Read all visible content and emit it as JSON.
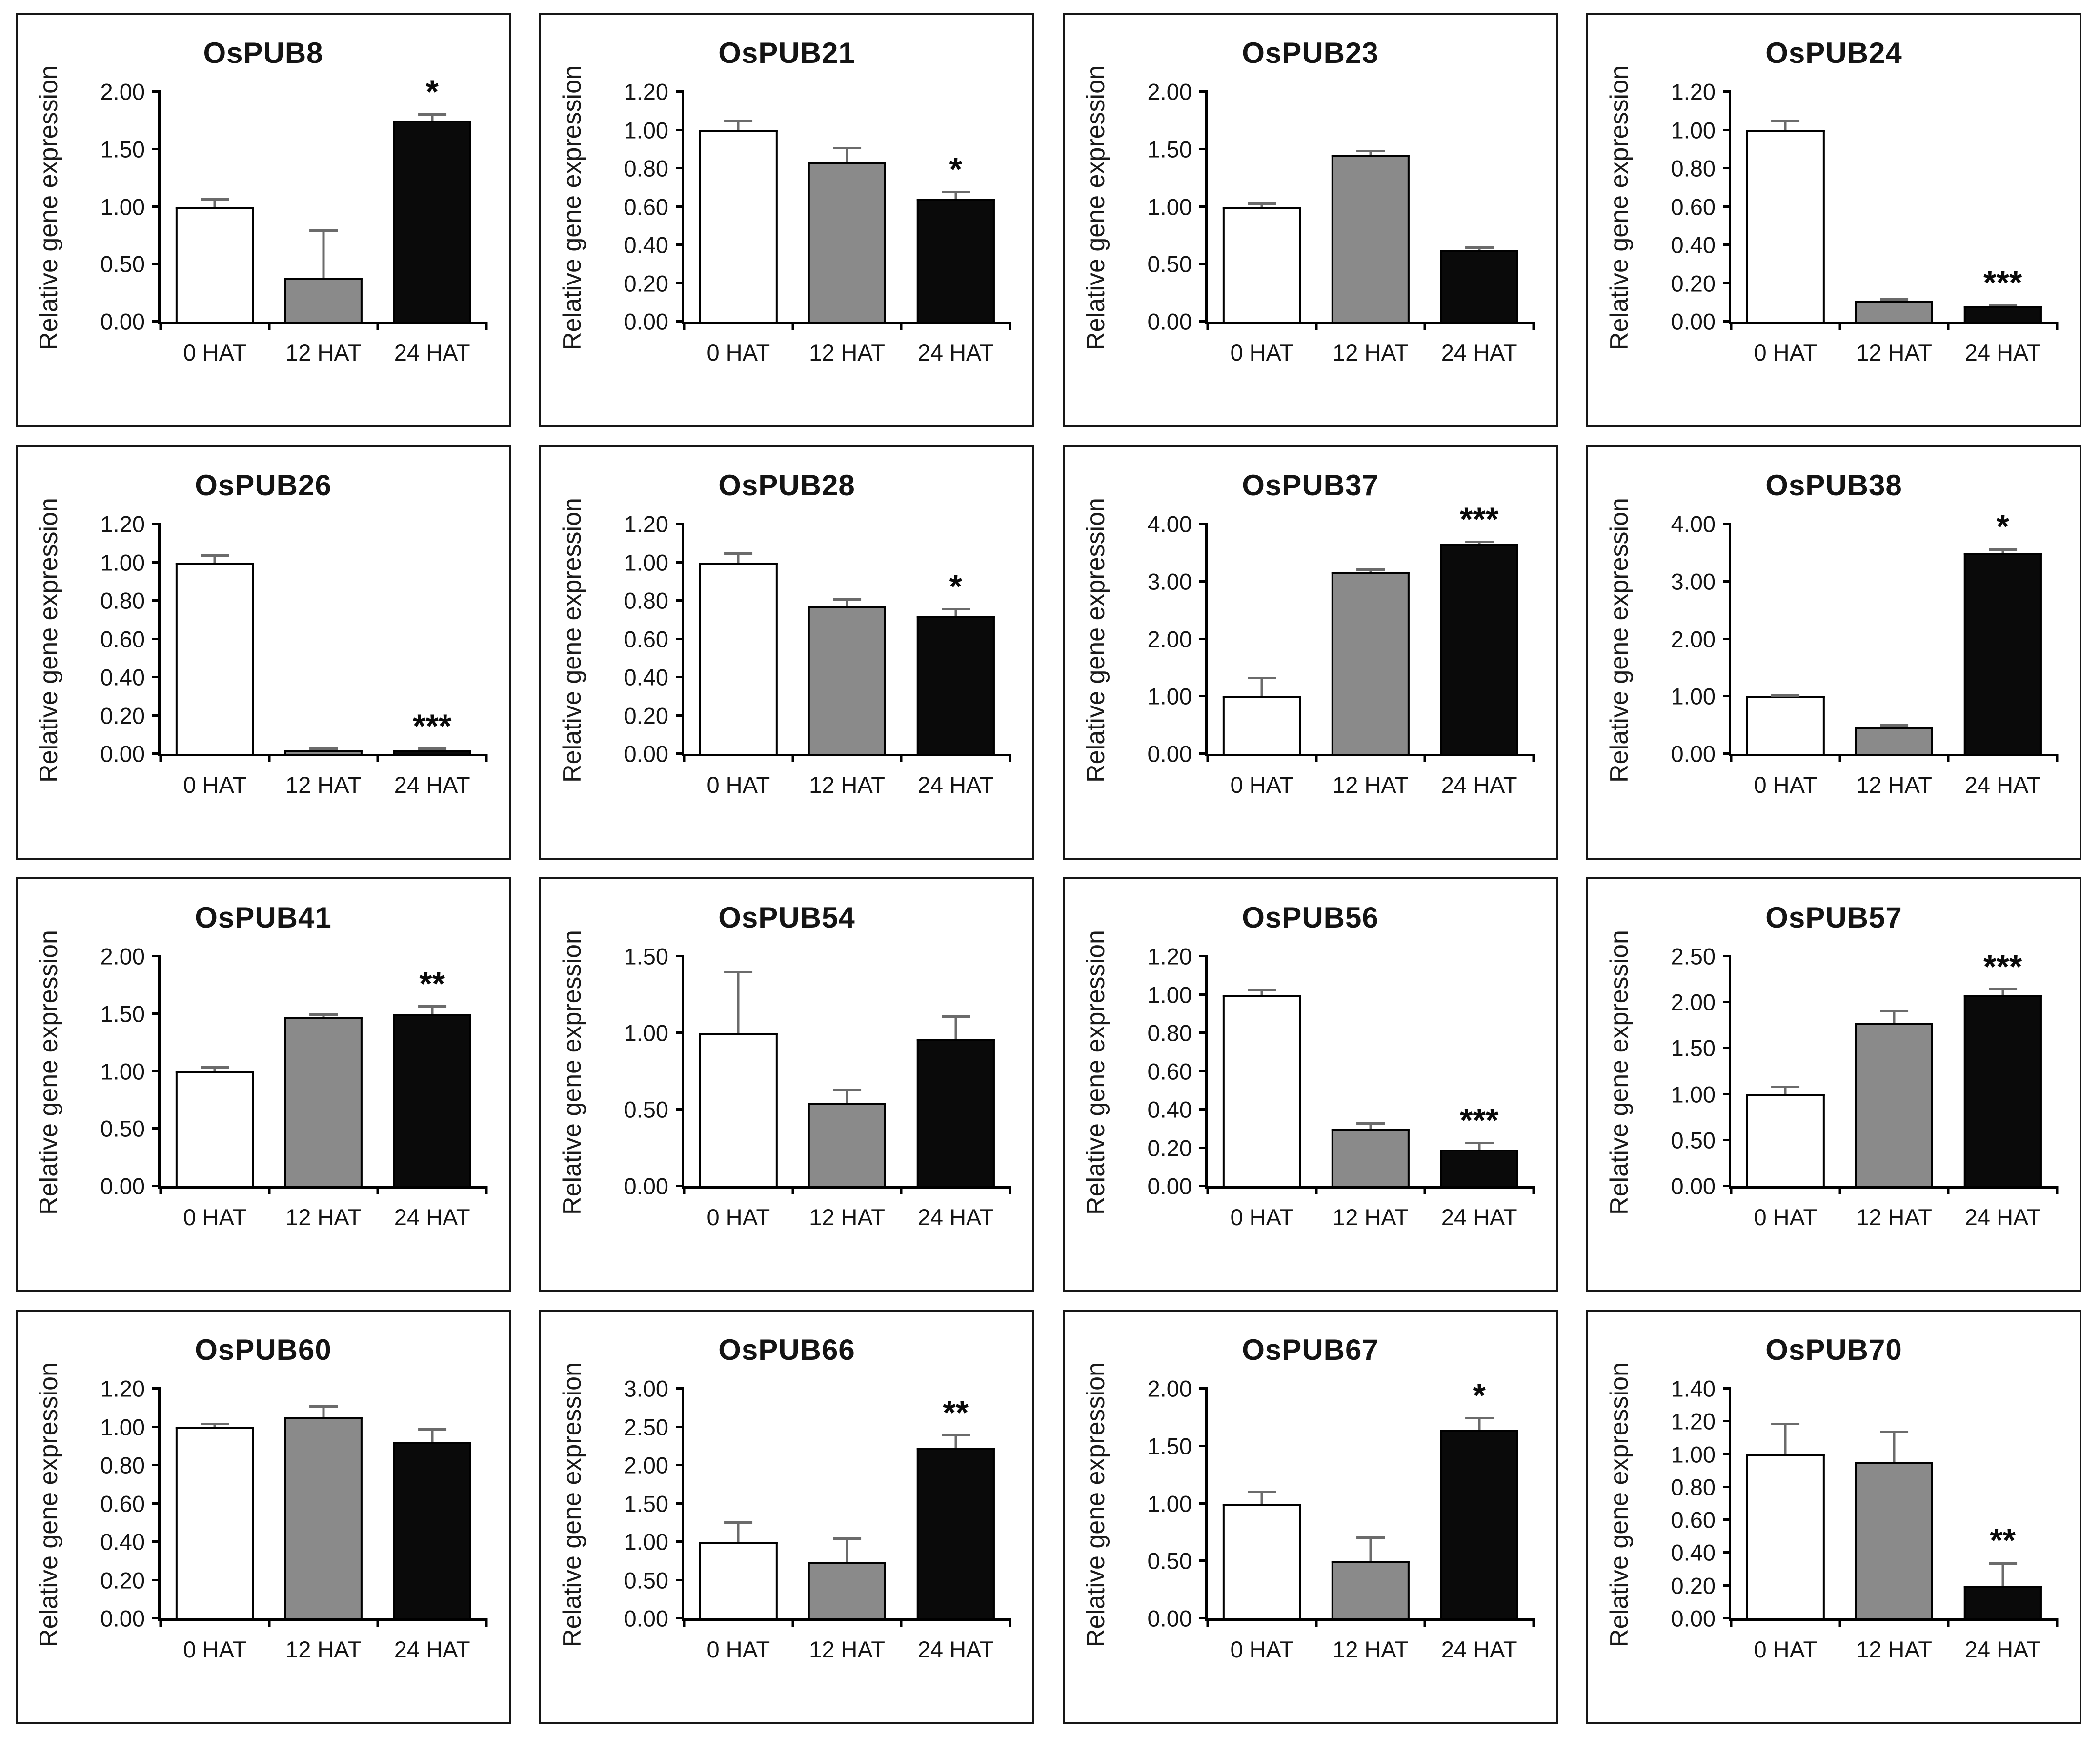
{
  "figure": {
    "y_axis_label": "Relative gene expression",
    "x_categories": [
      "0 HAT",
      "12 HAT",
      "24 HAT"
    ],
    "bar_fills": [
      "#ffffff",
      "#8a8a8a",
      "#0a0a0a"
    ],
    "bar_border_color": "#000000",
    "error_bar_color": "#6b6b6b",
    "panel_border_color": "#161616"
  },
  "chart_data": [
    {
      "type": "bar",
      "title": "OsPUB8",
      "categories": [
        "0 HAT",
        "12 HAT",
        "24 HAT"
      ],
      "values": [
        1.0,
        0.38,
        1.75
      ],
      "errors": [
        0.07,
        0.42,
        0.06
      ],
      "significance": [
        "",
        "",
        "*"
      ],
      "xlabel": "",
      "ylabel": "Relative gene expression",
      "ylim": [
        0,
        2.0
      ],
      "ytick_step": 0.5
    },
    {
      "type": "bar",
      "title": "OsPUB21",
      "categories": [
        "0 HAT",
        "12 HAT",
        "24 HAT"
      ],
      "values": [
        1.0,
        0.83,
        0.64
      ],
      "errors": [
        0.05,
        0.08,
        0.04
      ],
      "significance": [
        "",
        "",
        "*"
      ],
      "xlabel": "",
      "ylabel": "Relative gene expression",
      "ylim": [
        0,
        1.2
      ],
      "ytick_step": 0.2
    },
    {
      "type": "bar",
      "title": "OsPUB23",
      "categories": [
        "0 HAT",
        "12 HAT",
        "24 HAT"
      ],
      "values": [
        1.0,
        1.45,
        0.62
      ],
      "errors": [
        0.03,
        0.04,
        0.03
      ],
      "significance": [
        "",
        "",
        ""
      ],
      "xlabel": "",
      "ylabel": "Relative gene expression",
      "ylim": [
        0,
        2.0
      ],
      "ytick_step": 0.5
    },
    {
      "type": "bar",
      "title": "OsPUB24",
      "categories": [
        "0 HAT",
        "12 HAT",
        "24 HAT"
      ],
      "values": [
        1.0,
        0.11,
        0.08
      ],
      "errors": [
        0.05,
        0.01,
        0.01
      ],
      "significance": [
        "",
        "",
        "***"
      ],
      "xlabel": "",
      "ylabel": "Relative gene expression",
      "ylim": [
        0,
        1.2
      ],
      "ytick_step": 0.2
    },
    {
      "type": "bar",
      "title": "OsPUB26",
      "categories": [
        "0 HAT",
        "12 HAT",
        "24 HAT"
      ],
      "values": [
        1.0,
        0.02,
        0.02
      ],
      "errors": [
        0.04,
        0.01,
        0.01
      ],
      "significance": [
        "",
        "",
        "***"
      ],
      "xlabel": "",
      "ylabel": "Relative gene expression",
      "ylim": [
        0,
        1.2
      ],
      "ytick_step": 0.2
    },
    {
      "type": "bar",
      "title": "OsPUB28",
      "categories": [
        "0 HAT",
        "12 HAT",
        "24 HAT"
      ],
      "values": [
        1.0,
        0.77,
        0.72
      ],
      "errors": [
        0.05,
        0.04,
        0.04
      ],
      "significance": [
        "",
        "",
        "*"
      ],
      "xlabel": "",
      "ylabel": "Relative gene expression",
      "ylim": [
        0,
        1.2
      ],
      "ytick_step": 0.2
    },
    {
      "type": "bar",
      "title": "OsPUB37",
      "categories": [
        "0 HAT",
        "12 HAT",
        "24 HAT"
      ],
      "values": [
        1.0,
        3.17,
        3.65
      ],
      "errors": [
        0.33,
        0.05,
        0.05
      ],
      "significance": [
        "",
        "",
        "***"
      ],
      "xlabel": "",
      "ylabel": "Relative gene expression",
      "ylim": [
        0,
        4.0
      ],
      "ytick_step": 1.0
    },
    {
      "type": "bar",
      "title": "OsPUB38",
      "categories": [
        "0 HAT",
        "12 HAT",
        "24 HAT"
      ],
      "values": [
        1.0,
        0.46,
        3.5
      ],
      "errors": [
        0.03,
        0.05,
        0.07
      ],
      "significance": [
        "",
        "",
        "*"
      ],
      "xlabel": "",
      "ylabel": "Relative gene expression",
      "ylim": [
        0,
        4.0
      ],
      "ytick_step": 1.0
    },
    {
      "type": "bar",
      "title": "OsPUB41",
      "categories": [
        "0 HAT",
        "12 HAT",
        "24 HAT"
      ],
      "values": [
        1.0,
        1.47,
        1.5
      ],
      "errors": [
        0.04,
        0.03,
        0.07
      ],
      "significance": [
        "",
        "",
        "**"
      ],
      "xlabel": "",
      "ylabel": "Relative gene expression",
      "ylim": [
        0,
        2.0
      ],
      "ytick_step": 0.5
    },
    {
      "type": "bar",
      "title": "OsPUB54",
      "categories": [
        "0 HAT",
        "12 HAT",
        "24 HAT"
      ],
      "values": [
        1.0,
        0.54,
        0.96
      ],
      "errors": [
        0.4,
        0.09,
        0.15
      ],
      "significance": [
        "",
        "",
        ""
      ],
      "xlabel": "",
      "ylabel": "Relative gene expression",
      "ylim": [
        0,
        1.5
      ],
      "ytick_step": 0.5
    },
    {
      "type": "bar",
      "title": "OsPUB56",
      "categories": [
        "0 HAT",
        "12 HAT",
        "24 HAT"
      ],
      "values": [
        1.0,
        0.3,
        0.19
      ],
      "errors": [
        0.03,
        0.03,
        0.04
      ],
      "significance": [
        "",
        "",
        "***"
      ],
      "xlabel": "",
      "ylabel": "Relative gene expression",
      "ylim": [
        0,
        1.2
      ],
      "ytick_step": 0.2
    },
    {
      "type": "bar",
      "title": "OsPUB57",
      "categories": [
        "0 HAT",
        "12 HAT",
        "24 HAT"
      ],
      "values": [
        1.0,
        1.78,
        2.08
      ],
      "errors": [
        0.09,
        0.13,
        0.07
      ],
      "significance": [
        "",
        "",
        "***"
      ],
      "xlabel": "",
      "ylabel": "Relative gene expression",
      "ylim": [
        0,
        2.5
      ],
      "ytick_step": 0.5
    },
    {
      "type": "bar",
      "title": "OsPUB60",
      "categories": [
        "0 HAT",
        "12 HAT",
        "24 HAT"
      ],
      "values": [
        1.0,
        1.05,
        0.92
      ],
      "errors": [
        0.02,
        0.06,
        0.07
      ],
      "significance": [
        "",
        "",
        ""
      ],
      "xlabel": "",
      "ylabel": "Relative gene expression",
      "ylim": [
        0,
        1.2
      ],
      "ytick_step": 0.2
    },
    {
      "type": "bar",
      "title": "OsPUB66",
      "categories": [
        "0 HAT",
        "12 HAT",
        "24 HAT"
      ],
      "values": [
        1.0,
        0.74,
        2.23
      ],
      "errors": [
        0.26,
        0.31,
        0.17
      ],
      "significance": [
        "",
        "",
        "**"
      ],
      "xlabel": "",
      "ylabel": "Relative gene expression",
      "ylim": [
        0,
        3.0
      ],
      "ytick_step": 0.5
    },
    {
      "type": "bar",
      "title": "OsPUB67",
      "categories": [
        "0 HAT",
        "12 HAT",
        "24 HAT"
      ],
      "values": [
        1.0,
        0.5,
        1.64
      ],
      "errors": [
        0.11,
        0.21,
        0.11
      ],
      "significance": [
        "",
        "",
        "*"
      ],
      "xlabel": "",
      "ylabel": "Relative gene expression",
      "ylim": [
        0,
        2.0
      ],
      "ytick_step": 0.5
    },
    {
      "type": "bar",
      "title": "OsPUB70",
      "categories": [
        "0 HAT",
        "12 HAT",
        "24 HAT"
      ],
      "values": [
        1.0,
        0.95,
        0.2
      ],
      "errors": [
        0.19,
        0.19,
        0.14
      ],
      "significance": [
        "",
        "",
        "**"
      ],
      "xlabel": "",
      "ylabel": "Relative gene expression",
      "ylim": [
        0,
        1.4
      ],
      "ytick_step": 0.2
    }
  ]
}
